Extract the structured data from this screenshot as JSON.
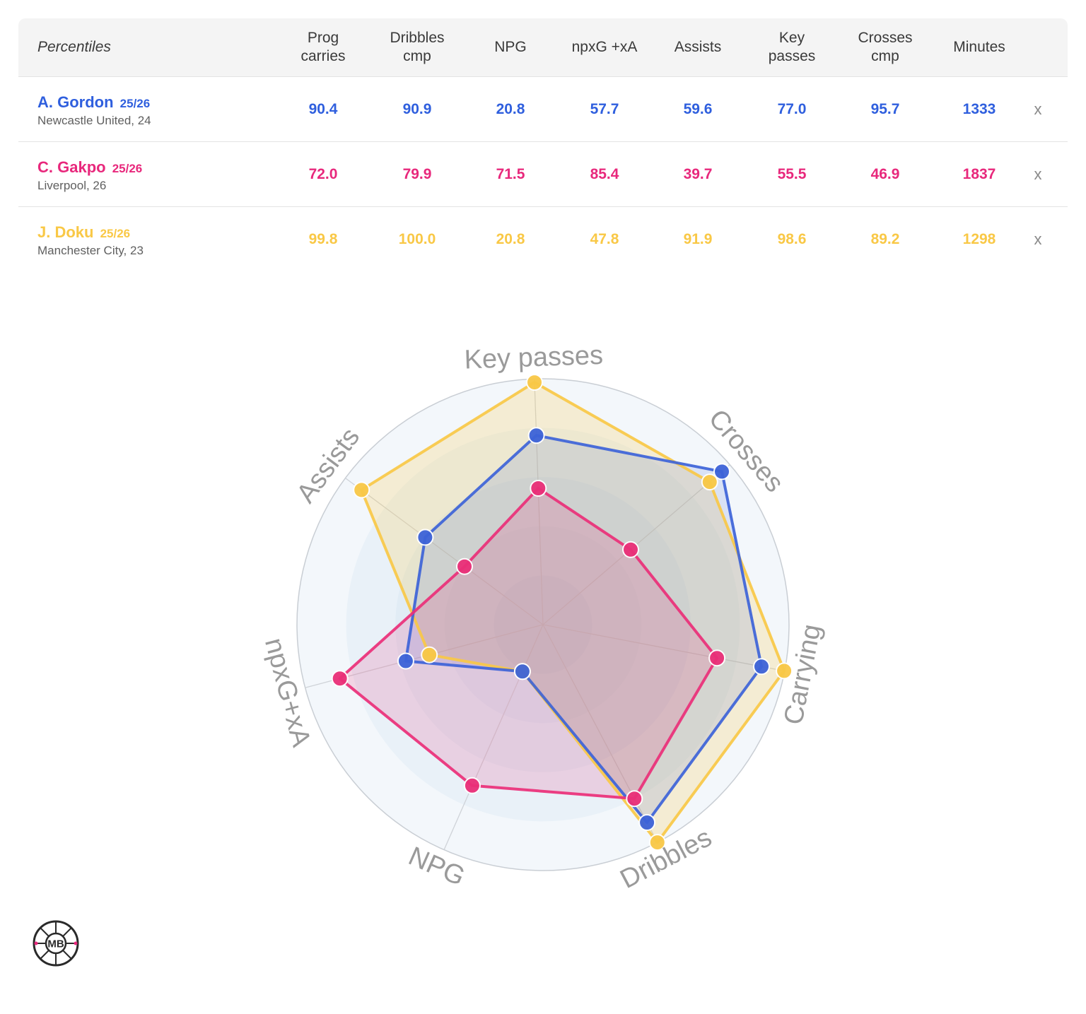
{
  "table": {
    "header_label": "Percentiles",
    "columns": [
      "Prog\ncarries",
      "Dribbles\ncmp",
      "NPG",
      "npxG +xA",
      "Assists",
      "Key\npasses",
      "Crosses\ncmp",
      "Minutes"
    ],
    "remove_label": "x",
    "rows": [
      {
        "name": "A. Gordon",
        "season": "25/26",
        "info": "Newcastle United, 24",
        "color": "#2f5fde",
        "values": [
          "90.4",
          "90.9",
          "20.8",
          "57.7",
          "59.6",
          "77.0",
          "95.7",
          "1333"
        ]
      },
      {
        "name": "C. Gakpo",
        "season": "25/26",
        "info": "Liverpool, 26",
        "color": "#e8287c",
        "values": [
          "72.0",
          "79.9",
          "71.5",
          "85.4",
          "39.7",
          "55.5",
          "46.9",
          "1837"
        ]
      },
      {
        "name": "J. Doku",
        "season": "25/26",
        "info": "Manchester City, 23",
        "color": "#f9c846",
        "values": [
          "99.8",
          "100.0",
          "20.8",
          "47.8",
          "91.9",
          "98.6",
          "89.2",
          "1298"
        ]
      }
    ]
  },
  "chart_data": {
    "type": "radar",
    "title": "",
    "axes": [
      "Key passes",
      "Crosses",
      "Carrying",
      "Dribbles",
      "NPG",
      "npxG+xA",
      "Assists"
    ],
    "range": [
      0,
      100
    ],
    "series": [
      {
        "name": "A. Gordon",
        "color": "#3d63d8",
        "values": [
          77.0,
          95.7,
          90.4,
          90.9,
          20.8,
          57.7,
          59.6
        ]
      },
      {
        "name": "C. Gakpo",
        "color": "#ea2f78",
        "values": [
          55.5,
          46.9,
          72.0,
          79.9,
          71.5,
          85.4,
          39.7
        ]
      },
      {
        "name": "J. Doku",
        "color": "#f9c846",
        "values": [
          98.6,
          89.2,
          99.8,
          100.0,
          20.8,
          47.8,
          91.9
        ]
      }
    ]
  },
  "logo": {
    "text": "MB"
  }
}
